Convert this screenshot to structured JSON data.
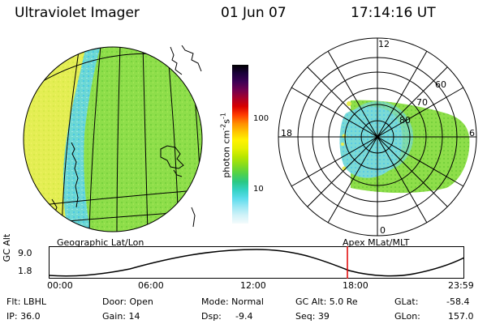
{
  "header": {
    "title": "Ultraviolet Imager",
    "date": "01 Jun 07",
    "time": "17:14:16 UT"
  },
  "colorbar": {
    "unit": "photon cm",
    "unit_exp1": "-2",
    "unit_mid": "s",
    "unit_exp2": "-1",
    "ticks": [
      "100",
      "10"
    ],
    "colors": [
      "#000000",
      "#1a003a",
      "#3b0055",
      "#700050",
      "#a8002a",
      "#d80000",
      "#ff3c00",
      "#ff8c00",
      "#ffc400",
      "#fff200",
      "#e6f000",
      "#b8e600",
      "#86dc1e",
      "#52d248",
      "#2ac884",
      "#34d2c4",
      "#5cdcec",
      "#9ce8f4",
      "#d0f2f8",
      "#f4fbfc"
    ]
  },
  "panels": {
    "left_label": "Geographic Lat/Lon",
    "right_label": "Apex MLat/MLT"
  },
  "polar": {
    "mlt_labels": [
      "12",
      "18",
      "6",
      "0"
    ],
    "lat_labels": [
      "60",
      "70",
      "80"
    ]
  },
  "altitude_plot": {
    "ylabel": "GC Alt",
    "yticks": [
      "9.0",
      "1.8"
    ],
    "xticks": [
      "00:00",
      "06:00",
      "12:00",
      "18:00",
      "23:59"
    ],
    "marker_time": "17:14"
  },
  "footer": {
    "flt": "Flt: LBHL",
    "ip": "IP: 36.0",
    "door": "Door: Open",
    "gain": "Gain: 14",
    "mode": "Mode: Normal",
    "dsp_label": "Dsp:",
    "dsp_value": "-9.4",
    "gcalt": "GC Alt: 5.0 Re",
    "seq": "Seq: 39",
    "glat_label": "GLat:",
    "glat_value": "-58.4",
    "glon_label": "GLon:",
    "glon_value": "157.0"
  }
}
